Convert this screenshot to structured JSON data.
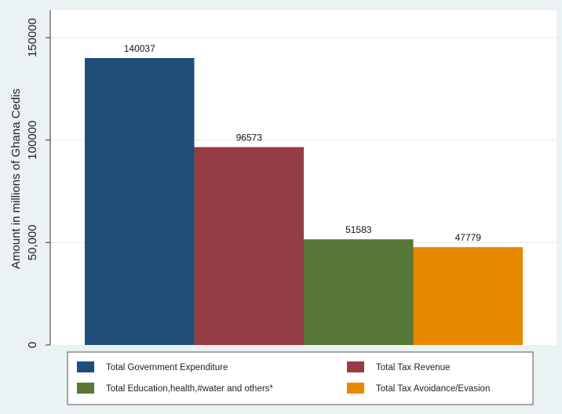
{
  "chart_data": {
    "type": "bar",
    "categories": [
      "Total Government Expenditure",
      "Total Tax Revenue",
      "Total Education,health,#water and others*",
      "Total Tax Avoidance/Evasion"
    ],
    "values": [
      140037,
      96573,
      51583,
      47779
    ],
    "value_labels": [
      "140037",
      "96573",
      "51583",
      "47779"
    ],
    "colors": [
      "#1f4e79",
      "#953d44",
      "#577838",
      "#e88a00"
    ],
    "title": "",
    "xlabel": "",
    "ylabel": "Amount in millions of Ghana Cedis",
    "ylim": [
      0,
      150000
    ],
    "yticks": [
      {
        "value": 0,
        "label": "0"
      },
      {
        "value": 50000,
        "label": "50,000"
      },
      {
        "value": 100000,
        "label": "100000"
      },
      {
        "value": 150000,
        "label": "150000"
      }
    ],
    "grid": true,
    "legend_position": "bottom",
    "legend_columns": 2,
    "legend": [
      {
        "label": "Total Government Expenditure",
        "color": "#1f4e79"
      },
      {
        "label": "Total Tax Revenue",
        "color": "#953d44"
      },
      {
        "label": "Total Education,health,#water and others*",
        "color": "#577838"
      },
      {
        "label": "Total Tax Avoidance/Evasion",
        "color": "#e88a00"
      }
    ]
  }
}
